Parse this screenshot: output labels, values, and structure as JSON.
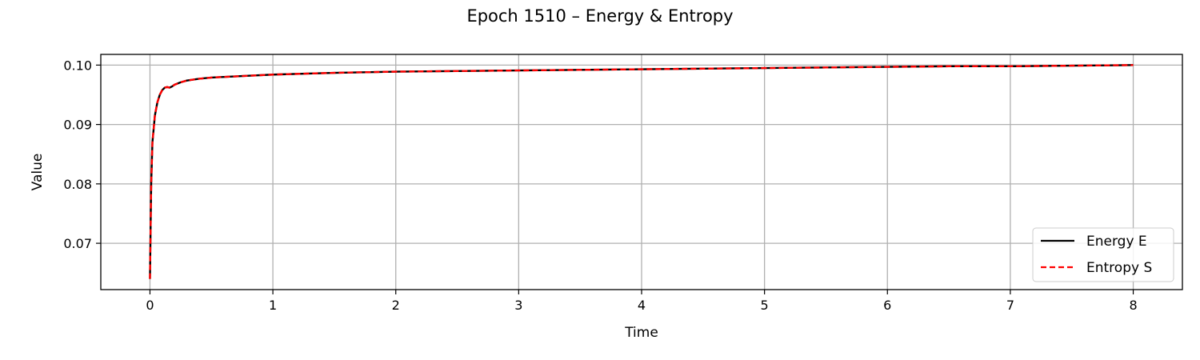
{
  "chart_data": {
    "type": "line",
    "title": "Epoch 1510 – Energy & Entropy",
    "xlabel": "Time",
    "ylabel": "Value",
    "xlim": [
      -0.4,
      8.4
    ],
    "ylim": [
      0.0622,
      0.1018
    ],
    "x_ticks": [
      0,
      1,
      2,
      3,
      4,
      5,
      6,
      7,
      8
    ],
    "x_tick_labels": [
      "0",
      "1",
      "2",
      "3",
      "4",
      "5",
      "6",
      "7",
      "8"
    ],
    "y_ticks": [
      0.07,
      0.08,
      0.09,
      0.1
    ],
    "y_tick_labels": [
      "0.07",
      "0.08",
      "0.09",
      "0.10"
    ],
    "grid": true,
    "legend_position": "lower-right",
    "x": [
      0,
      0.01,
      0.02,
      0.04,
      0.06,
      0.08,
      0.1,
      0.12,
      0.14,
      0.16,
      0.18,
      0.2,
      0.25,
      0.3,
      0.4,
      0.5,
      0.6,
      0.8,
      1.0,
      1.5,
      2.0,
      2.5,
      3.0,
      3.5,
      4.0,
      4.5,
      5.0,
      5.5,
      6.0,
      6.5,
      7.0,
      7.5,
      8.0
    ],
    "series": [
      {
        "name": "Energy E",
        "color": "#000000",
        "style": "solid",
        "values": [
          0.064,
          0.08,
          0.087,
          0.0915,
          0.0937,
          0.095,
          0.0958,
          0.0962,
          0.0963,
          0.0962,
          0.0964,
          0.0967,
          0.0971,
          0.0974,
          0.0977,
          0.0979,
          0.098,
          0.0982,
          0.0984,
          0.0987,
          0.0989,
          0.099,
          0.0991,
          0.0992,
          0.0993,
          0.0994,
          0.0995,
          0.0996,
          0.0997,
          0.0998,
          0.0998,
          0.0999,
          0.1
        ]
      },
      {
        "name": "Entropy S",
        "color": "#ff0000",
        "style": "dashed",
        "values": [
          0.064,
          0.08,
          0.087,
          0.0915,
          0.0937,
          0.095,
          0.0958,
          0.0962,
          0.0963,
          0.0962,
          0.0964,
          0.0967,
          0.0971,
          0.0974,
          0.0977,
          0.0979,
          0.098,
          0.0982,
          0.0984,
          0.0987,
          0.0989,
          0.099,
          0.0991,
          0.0992,
          0.0993,
          0.0994,
          0.0995,
          0.0996,
          0.0997,
          0.0998,
          0.0998,
          0.0999,
          0.1
        ]
      }
    ]
  }
}
